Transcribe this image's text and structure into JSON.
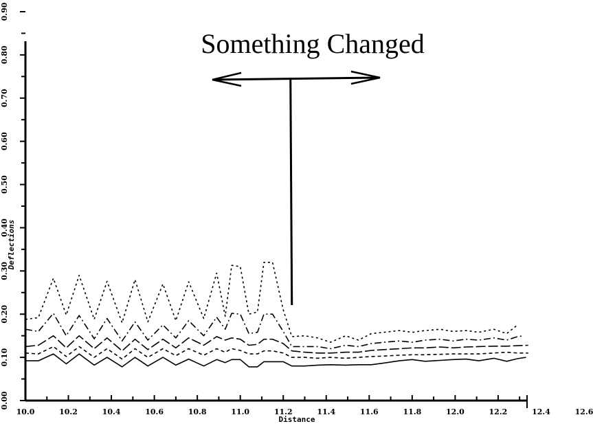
{
  "chart_data": {
    "type": "line",
    "title": "",
    "xlabel": "Distance",
    "ylabel": "Deflections",
    "xlim": [
      10.0,
      12.6
    ],
    "ylim": [
      0.0,
      0.9
    ],
    "xticks": [
      "10.0",
      "10.2",
      "10.4",
      "10.6",
      "10.8",
      "11.0",
      "11.2",
      "11.4",
      "11.6",
      "11.8",
      "12.0",
      "12.2",
      "12.4",
      "12.6"
    ],
    "yticks": [
      "0.00",
      "0.10",
      "0.20",
      "0.30",
      "0.40",
      "0.50",
      "0.60",
      "0.70",
      "0.80",
      "0.90"
    ],
    "grid": false,
    "legend": "none",
    "annotations": [
      {
        "text": "Something Changed",
        "x_from": 10.87,
        "x_to": 11.65,
        "x_stem": 11.24
      }
    ],
    "series": [
      {
        "dash": "3,4",
        "x": [
          10.0,
          10.06,
          10.13,
          10.19,
          10.25,
          10.32,
          10.38,
          10.45,
          10.51,
          10.57,
          10.64,
          10.7,
          10.76,
          10.83,
          10.89,
          10.93,
          10.96,
          11.0,
          11.04,
          11.08,
          11.11,
          11.15,
          11.2,
          11.24,
          11.3,
          11.36,
          11.42,
          11.49,
          11.55,
          11.61,
          11.67,
          11.74,
          11.8,
          11.86,
          11.93,
          11.99,
          12.05,
          12.11,
          12.18,
          12.24,
          12.29
        ],
        "y": [
          0.188,
          0.192,
          0.283,
          0.198,
          0.29,
          0.188,
          0.276,
          0.18,
          0.28,
          0.182,
          0.27,
          0.185,
          0.275,
          0.19,
          0.295,
          0.195,
          0.313,
          0.31,
          0.2,
          0.205,
          0.32,
          0.32,
          0.21,
          0.148,
          0.15,
          0.145,
          0.135,
          0.15,
          0.14,
          0.155,
          0.158,
          0.162,
          0.158,
          0.162,
          0.165,
          0.16,
          0.162,
          0.158,
          0.165,
          0.155,
          0.175
        ]
      },
      {
        "dash": "10,4,2,4",
        "x": [
          10.0,
          10.06,
          10.13,
          10.19,
          10.25,
          10.32,
          10.38,
          10.45,
          10.51,
          10.57,
          10.64,
          10.7,
          10.76,
          10.83,
          10.89,
          10.93,
          10.96,
          11.0,
          11.04,
          11.08,
          11.11,
          11.15,
          11.2,
          11.24,
          11.3,
          11.36,
          11.42,
          11.49,
          11.55,
          11.61,
          11.67,
          11.74,
          11.8,
          11.86,
          11.93,
          11.99,
          12.05,
          12.11,
          12.18,
          12.24,
          12.29,
          12.32
        ],
        "y": [
          0.165,
          0.16,
          0.202,
          0.15,
          0.197,
          0.143,
          0.19,
          0.138,
          0.182,
          0.14,
          0.175,
          0.145,
          0.185,
          0.15,
          0.193,
          0.165,
          0.202,
          0.2,
          0.155,
          0.158,
          0.2,
          0.2,
          0.16,
          0.125,
          0.125,
          0.125,
          0.12,
          0.128,
          0.125,
          0.132,
          0.135,
          0.138,
          0.135,
          0.14,
          0.142,
          0.138,
          0.142,
          0.14,
          0.145,
          0.14,
          0.148,
          0.15
        ]
      },
      {
        "dash": "14,4",
        "x": [
          10.0,
          10.06,
          10.13,
          10.19,
          10.25,
          10.32,
          10.38,
          10.45,
          10.51,
          10.57,
          10.64,
          10.7,
          10.76,
          10.83,
          10.89,
          10.93,
          10.96,
          11.0,
          11.04,
          11.08,
          11.11,
          11.15,
          11.2,
          11.24,
          11.3,
          11.36,
          11.42,
          11.49,
          11.55,
          11.61,
          11.67,
          11.74,
          11.8,
          11.86,
          11.93,
          11.99,
          12.05,
          12.11,
          12.18,
          12.24,
          12.29,
          12.34
        ],
        "y": [
          0.125,
          0.128,
          0.15,
          0.122,
          0.15,
          0.12,
          0.145,
          0.115,
          0.142,
          0.118,
          0.142,
          0.122,
          0.145,
          0.128,
          0.148,
          0.14,
          0.145,
          0.142,
          0.128,
          0.13,
          0.142,
          0.142,
          0.132,
          0.115,
          0.112,
          0.11,
          0.11,
          0.112,
          0.112,
          0.116,
          0.118,
          0.12,
          0.122,
          0.122,
          0.124,
          0.122,
          0.124,
          0.125,
          0.126,
          0.126,
          0.127,
          0.128
        ]
      },
      {
        "dash": "5,4",
        "x": [
          10.0,
          10.06,
          10.13,
          10.19,
          10.25,
          10.32,
          10.38,
          10.45,
          10.51,
          10.57,
          10.64,
          10.7,
          10.76,
          10.83,
          10.89,
          10.93,
          10.96,
          11.0,
          11.04,
          11.08,
          11.11,
          11.15,
          11.2,
          11.24,
          11.3,
          11.36,
          11.42,
          11.49,
          11.55,
          11.61,
          11.67,
          11.74,
          11.8,
          11.86,
          11.93,
          11.99,
          12.05,
          12.11,
          12.18,
          12.24,
          12.29,
          12.34
        ],
        "y": [
          0.11,
          0.108,
          0.125,
          0.102,
          0.125,
          0.1,
          0.12,
          0.096,
          0.12,
          0.1,
          0.12,
          0.104,
          0.12,
          0.105,
          0.12,
          0.112,
          0.12,
          0.116,
          0.108,
          0.108,
          0.115,
          0.115,
          0.11,
          0.1,
          0.1,
          0.098,
          0.1,
          0.098,
          0.1,
          0.102,
          0.103,
          0.105,
          0.106,
          0.106,
          0.107,
          0.108,
          0.108,
          0.108,
          0.11,
          0.112,
          0.11,
          0.11
        ]
      },
      {
        "dash": "",
        "x": [
          10.0,
          10.06,
          10.13,
          10.19,
          10.25,
          10.32,
          10.38,
          10.45,
          10.51,
          10.57,
          10.64,
          10.7,
          10.76,
          10.83,
          10.89,
          10.93,
          10.96,
          11.0,
          11.04,
          11.08,
          11.11,
          11.15,
          11.2,
          11.24,
          11.3,
          11.36,
          11.42,
          11.49,
          11.55,
          11.61,
          11.67,
          11.74,
          11.8,
          11.86,
          11.93,
          11.99,
          12.05,
          12.11,
          12.18,
          12.24,
          12.29,
          12.33
        ],
        "y": [
          0.092,
          0.092,
          0.108,
          0.085,
          0.108,
          0.082,
          0.1,
          0.078,
          0.1,
          0.08,
          0.1,
          0.082,
          0.096,
          0.08,
          0.095,
          0.088,
          0.095,
          0.095,
          0.078,
          0.078,
          0.09,
          0.09,
          0.09,
          0.08,
          0.08,
          0.082,
          0.083,
          0.082,
          0.083,
          0.083,
          0.087,
          0.092,
          0.095,
          0.091,
          0.093,
          0.095,
          0.096,
          0.092,
          0.098,
          0.091,
          0.097,
          0.1
        ]
      }
    ]
  }
}
